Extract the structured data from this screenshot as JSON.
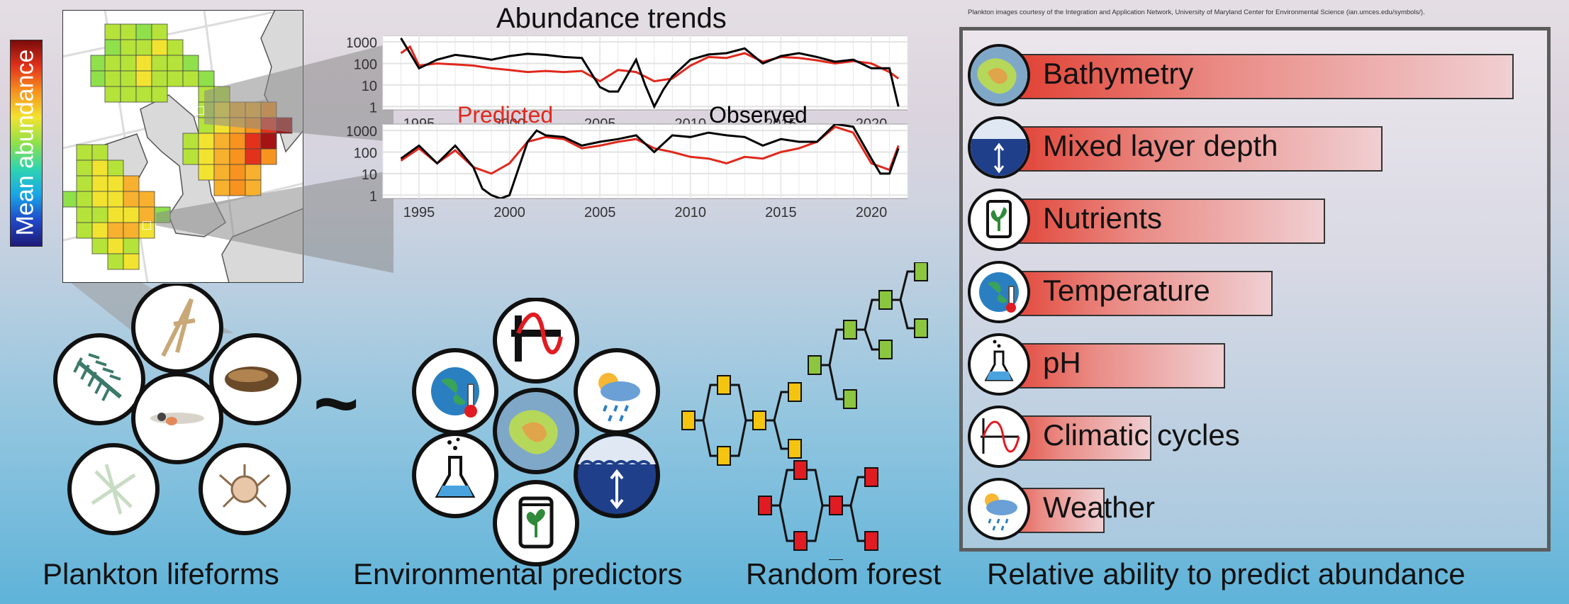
{
  "header": {
    "trend_title": "Abundance trends",
    "credit": "Plankton images courtesy of the Integration and Application Network, University of Maryland Center for Environmental Science (ian.umces.edu/symbols/)."
  },
  "map": {
    "legend_label": "Mean abundance",
    "colorbar": [
      "#1f1a78",
      "#1f49c8",
      "#19a6e6",
      "#2fd4b0",
      "#8fe04a",
      "#f2e330",
      "#f7931e",
      "#e2321c",
      "#7a0b0b"
    ]
  },
  "trend_panels": {
    "y_ticks": [
      "1000",
      "100",
      "10",
      "1"
    ],
    "x_ticks": [
      "1995",
      "2000",
      "2005",
      "2010",
      "2015",
      "2020"
    ],
    "predicted_label": "Predicted",
    "observed_label": "Observed",
    "predicted_color": "#e0281c",
    "observed_color": "#000000"
  },
  "chart_data": [
    {
      "type": "line",
      "x_range": [
        1993,
        2022
      ],
      "y_scale": "log",
      "ylim": [
        0.7,
        2000
      ],
      "series": [
        {
          "name": "Observed",
          "x": [
            1994,
            1994.5,
            1995,
            1996,
            1997,
            1998,
            1999,
            2000,
            2001,
            2002,
            2003,
            2004,
            2005,
            2005.5,
            2006,
            2007,
            2007.5,
            2008,
            2008.5,
            2009,
            2010,
            2011,
            2012,
            2013,
            2014,
            2015,
            2016,
            2017,
            2018,
            2019,
            2020,
            2021,
            2021.5
          ],
          "y": [
            1500,
            300,
            60,
            150,
            250,
            200,
            150,
            220,
            280,
            250,
            200,
            180,
            8,
            5,
            5,
            150,
            10,
            1,
            6,
            25,
            150,
            260,
            300,
            500,
            100,
            220,
            300,
            200,
            120,
            150,
            60,
            60,
            1
          ]
        },
        {
          "name": "Predicted",
          "x": [
            1994,
            1994.5,
            1995,
            1996,
            1997,
            1998,
            1999,
            2000,
            2001,
            2002,
            2003,
            2004,
            2005,
            2006,
            2007,
            2008,
            2009,
            2010,
            2011,
            2012,
            2013,
            2014,
            2015,
            2016,
            2017,
            2018,
            2019,
            2020,
            2021,
            2021.5
          ],
          "y": [
            300,
            600,
            80,
            100,
            90,
            80,
            60,
            50,
            40,
            45,
            40,
            45,
            15,
            50,
            40,
            15,
            20,
            80,
            200,
            180,
            300,
            120,
            200,
            180,
            140,
            100,
            130,
            100,
            40,
            20
          ]
        }
      ]
    },
    {
      "type": "line",
      "x_range": [
        1993,
        2022
      ],
      "y_scale": "log",
      "ylim": [
        0.7,
        2000
      ],
      "series": [
        {
          "name": "Observed",
          "x": [
            1994,
            1995,
            1996,
            1997,
            1998,
            1998.5,
            1999,
            1999.5,
            2000,
            2001,
            2001.5,
            2002,
            2003,
            2004,
            2005,
            2006,
            2007,
            2008,
            2009,
            2010,
            2011,
            2012,
            2013,
            2014,
            2015,
            2016,
            2017,
            2018,
            2019,
            2020,
            2020.5,
            2021,
            2021.5
          ],
          "y": [
            50,
            200,
            30,
            200,
            20,
            2,
            1,
            0.5,
            1,
            300,
            1000,
            600,
            500,
            200,
            300,
            400,
            600,
            100,
            600,
            500,
            800,
            600,
            500,
            200,
            400,
            300,
            300,
            2000,
            1500,
            50,
            10,
            10,
            150
          ]
        },
        {
          "name": "Predicted",
          "x": [
            1994,
            1995,
            1996,
            1997,
            1998,
            1999,
            2000,
            2001,
            2002,
            2003,
            2004,
            2005,
            2006,
            2007,
            2008,
            2009,
            2010,
            2011,
            2012,
            2013,
            2014,
            2015,
            2016,
            2017,
            2018,
            2019,
            2020,
            2021,
            2021.5
          ],
          "y": [
            40,
            150,
            30,
            120,
            20,
            10,
            30,
            300,
            500,
            400,
            150,
            200,
            300,
            400,
            150,
            100,
            60,
            50,
            30,
            60,
            50,
            100,
            150,
            300,
            1500,
            800,
            30,
            15,
            200
          ]
        }
      ]
    },
    {
      "type": "bar",
      "orientation": "horizontal",
      "title": "Relative ability to predict abundance",
      "categories": [
        "Bathymetry",
        "Mixed layer depth",
        "Nutrients",
        "Temperature",
        "pH",
        "Climatic cycles",
        "Weather"
      ],
      "values": [
        1.0,
        0.75,
        0.64,
        0.54,
        0.45,
        0.31,
        0.22
      ]
    }
  ],
  "captions": {
    "plankton": "Plankton lifeforms",
    "predictors": "Environmental predictors",
    "forest": "Random forest",
    "relative": "Relative ability to predict abundance"
  },
  "tilde": "~",
  "forest_colors": {
    "yellow": "#f4c40f",
    "green": "#8cc63f",
    "red": "#e11b22"
  },
  "icons": {
    "plankton": [
      "arrow-worm-icon",
      "polychaete-larva-icon",
      "copepod-icon",
      "fish-larva-icon",
      "diatom-icon",
      "crab-larva-icon"
    ],
    "predictors": [
      "climatic-cycle-icon",
      "weather-icon",
      "temperature-icon",
      "bathymetry-icon",
      "mixed-layer-icon",
      "ph-flask-icon",
      "nutrients-icon"
    ]
  }
}
